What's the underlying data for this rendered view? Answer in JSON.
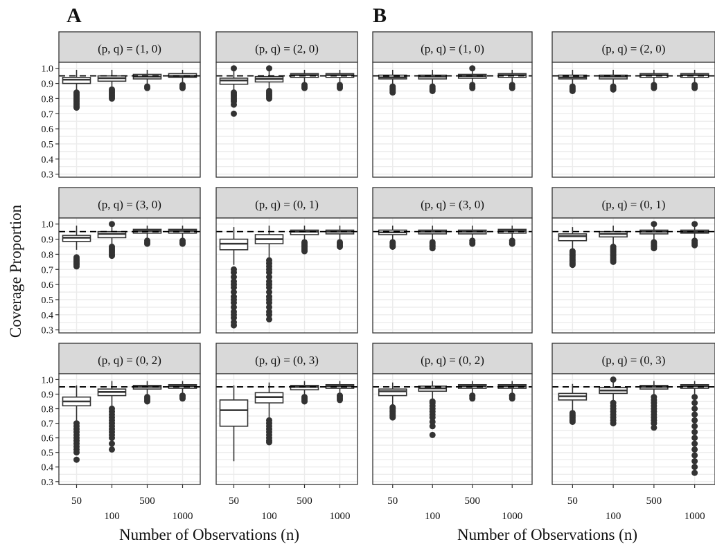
{
  "panel_labels": [
    "A",
    "B"
  ],
  "ylabel": "Coverage Proportion",
  "xlabel": "Number of Observations (n)",
  "chart_data": [
    {
      "type": "boxplot-facets",
      "panel": "A",
      "title": "",
      "xlabel": "Number of Observations (n)",
      "ylabel": "Coverage Proportion",
      "categories": [
        "50",
        "100",
        "500",
        "1000"
      ],
      "ylim": [
        0.28,
        1.04
      ],
      "yticks": [
        0.3,
        0.4,
        0.5,
        0.6,
        0.7,
        0.8,
        0.9,
        1.0
      ],
      "reference_line": 0.95,
      "grid": true,
      "facets": [
        {
          "label": "(p, q) = (1, 0)",
          "boxes": [
            {
              "q1": 0.9,
              "median": 0.925,
              "q3": 0.94,
              "whisker_low": 0.85,
              "whisker_high": 0.99,
              "outliers": [
                0.74,
                0.75,
                0.76,
                0.77,
                0.78,
                0.79,
                0.8,
                0.81,
                0.82,
                0.83,
                0.84
              ]
            },
            {
              "q1": 0.915,
              "median": 0.935,
              "q3": 0.95,
              "whisker_low": 0.86,
              "whisker_high": 0.99,
              "outliers": [
                0.8,
                0.81,
                0.82,
                0.83,
                0.84,
                0.85,
                0.86
              ]
            },
            {
              "q1": 0.93,
              "median": 0.945,
              "q3": 0.96,
              "whisker_low": 0.89,
              "whisker_high": 0.99,
              "outliers": [
                0.87,
                0.88
              ]
            },
            {
              "q1": 0.94,
              "median": 0.95,
              "q3": 0.965,
              "whisker_low": 0.9,
              "whisker_high": 0.99,
              "outliers": [
                0.87,
                0.88,
                0.89
              ]
            }
          ]
        },
        {
          "label": "(p, q) = (2, 0)",
          "boxes": [
            {
              "q1": 0.895,
              "median": 0.92,
              "q3": 0.935,
              "whisker_low": 0.85,
              "whisker_high": 0.99,
              "outliers": [
                1.0,
                0.7,
                0.76,
                0.78,
                0.79,
                0.8,
                0.81,
                0.82,
                0.83,
                0.84
              ]
            },
            {
              "q1": 0.91,
              "median": 0.93,
              "q3": 0.945,
              "whisker_low": 0.86,
              "whisker_high": 0.99,
              "outliers": [
                1.0,
                0.8,
                0.81,
                0.82,
                0.83,
                0.84,
                0.85
              ]
            },
            {
              "q1": 0.94,
              "median": 0.955,
              "q3": 0.965,
              "whisker_low": 0.9,
              "whisker_high": 0.99,
              "outliers": [
                0.87,
                0.88,
                0.89
              ]
            },
            {
              "q1": 0.94,
              "median": 0.955,
              "q3": 0.965,
              "whisker_low": 0.9,
              "whisker_high": 0.99,
              "outliers": [
                0.87,
                0.88,
                0.89
              ]
            }
          ]
        },
        {
          "label": "(p, q) = (3, 0)",
          "boxes": [
            {
              "q1": 0.885,
              "median": 0.91,
              "q3": 0.925,
              "whisker_low": 0.83,
              "whisker_high": 0.99,
              "outliers": [
                0.72,
                0.73,
                0.74,
                0.75,
                0.76,
                0.77,
                0.78
              ]
            },
            {
              "q1": 0.91,
              "median": 0.935,
              "q3": 0.95,
              "whisker_low": 0.86,
              "whisker_high": 0.99,
              "outliers": [
                1.0,
                0.79,
                0.8,
                0.81,
                0.82,
                0.83,
                0.84,
                0.85
              ]
            },
            {
              "q1": 0.94,
              "median": 0.955,
              "q3": 0.965,
              "whisker_low": 0.9,
              "whisker_high": 0.99,
              "outliers": [
                0.87,
                0.88,
                0.89
              ]
            },
            {
              "q1": 0.94,
              "median": 0.955,
              "q3": 0.965,
              "whisker_low": 0.9,
              "whisker_high": 0.99,
              "outliers": [
                0.87,
                0.88,
                0.89
              ]
            }
          ]
        },
        {
          "label": "(p, q) = (0, 1)",
          "boxes": [
            {
              "q1": 0.83,
              "median": 0.87,
              "q3": 0.9,
              "whisker_low": 0.73,
              "whisker_high": 0.98,
              "outliers": [
                0.33,
                0.35,
                0.38,
                0.4,
                0.42,
                0.45,
                0.48,
                0.5,
                0.52,
                0.55,
                0.58,
                0.6,
                0.62,
                0.65,
                0.68,
                0.7
              ]
            },
            {
              "q1": 0.87,
              "median": 0.9,
              "q3": 0.93,
              "whisker_low": 0.78,
              "whisker_high": 0.99,
              "outliers": [
                0.37,
                0.4,
                0.42,
                0.45,
                0.48,
                0.5,
                0.52,
                0.55,
                0.58,
                0.6,
                0.62,
                0.65,
                0.68,
                0.7,
                0.72,
                0.74,
                0.76
              ]
            },
            {
              "q1": 0.93,
              "median": 0.95,
              "q3": 0.96,
              "whisker_low": 0.89,
              "whisker_high": 0.99,
              "outliers": [
                0.82,
                0.83,
                0.84,
                0.85,
                0.86,
                0.87,
                0.88
              ]
            },
            {
              "q1": 0.935,
              "median": 0.95,
              "q3": 0.96,
              "whisker_low": 0.89,
              "whisker_high": 0.99,
              "outliers": [
                0.85,
                0.86,
                0.87,
                0.88
              ]
            }
          ]
        },
        {
          "label": "(p, q) = (0, 2)",
          "boxes": [
            {
              "q1": 0.82,
              "median": 0.85,
              "q3": 0.88,
              "whisker_low": 0.72,
              "whisker_high": 0.96,
              "outliers": [
                0.45,
                0.5,
                0.52,
                0.54,
                0.56,
                0.58,
                0.6,
                0.62,
                0.64,
                0.66,
                0.68,
                0.7
              ]
            },
            {
              "q1": 0.89,
              "median": 0.915,
              "q3": 0.935,
              "whisker_low": 0.82,
              "whisker_high": 0.99,
              "outliers": [
                0.52,
                0.56,
                0.6,
                0.62,
                0.64,
                0.66,
                0.68,
                0.7,
                0.72,
                0.74,
                0.76,
                0.78,
                0.8
              ]
            },
            {
              "q1": 0.935,
              "median": 0.95,
              "q3": 0.96,
              "whisker_low": 0.89,
              "whisker_high": 0.99,
              "outliers": [
                0.85,
                0.86,
                0.87,
                0.88
              ]
            },
            {
              "q1": 0.94,
              "median": 0.955,
              "q3": 0.965,
              "whisker_low": 0.9,
              "whisker_high": 0.99,
              "outliers": [
                0.87,
                0.88,
                0.89
              ]
            }
          ]
        },
        {
          "label": "(p, q) = (0, 3)",
          "boxes": [
            {
              "q1": 0.68,
              "median": 0.79,
              "q3": 0.86,
              "whisker_low": 0.44,
              "whisker_high": 0.96,
              "outliers": []
            },
            {
              "q1": 0.84,
              "median": 0.88,
              "q3": 0.91,
              "whisker_low": 0.74,
              "whisker_high": 0.98,
              "outliers": [
                0.57,
                0.58,
                0.6,
                0.62,
                0.64,
                0.66,
                0.68,
                0.7,
                0.72
              ]
            },
            {
              "q1": 0.93,
              "median": 0.95,
              "q3": 0.96,
              "whisker_low": 0.89,
              "whisker_high": 0.99,
              "outliers": [
                0.85,
                0.86,
                0.87,
                0.88
              ]
            },
            {
              "q1": 0.94,
              "median": 0.955,
              "q3": 0.965,
              "whisker_low": 0.9,
              "whisker_high": 0.99,
              "outliers": [
                0.86,
                0.87,
                0.88,
                0.89
              ]
            }
          ]
        }
      ]
    },
    {
      "type": "boxplot-facets",
      "panel": "B",
      "title": "",
      "xlabel": "Number of Observations (n)",
      "ylabel": "",
      "categories": [
        "50",
        "100",
        "500",
        "1000"
      ],
      "ylim": [
        0.28,
        1.04
      ],
      "yticks": [
        0.3,
        0.4,
        0.5,
        0.6,
        0.7,
        0.8,
        0.9,
        1.0
      ],
      "reference_line": 0.95,
      "grid": true,
      "facets": [
        {
          "label": "(p, q) = (1, 0)",
          "boxes": [
            {
              "q1": 0.93,
              "median": 0.94,
              "q3": 0.955,
              "whisker_low": 0.89,
              "whisker_high": 0.99,
              "outliers": [
                0.84,
                0.85,
                0.86,
                0.87,
                0.88
              ]
            },
            {
              "q1": 0.93,
              "median": 0.945,
              "q3": 0.955,
              "whisker_low": 0.89,
              "whisker_high": 0.99,
              "outliers": [
                0.85,
                0.86,
                0.87,
                0.88
              ]
            },
            {
              "q1": 0.935,
              "median": 0.95,
              "q3": 0.96,
              "whisker_low": 0.9,
              "whisker_high": 0.99,
              "outliers": [
                1.0,
                0.87,
                0.88,
                0.89
              ]
            },
            {
              "q1": 0.94,
              "median": 0.955,
              "q3": 0.965,
              "whisker_low": 0.9,
              "whisker_high": 0.99,
              "outliers": [
                0.87,
                0.88,
                0.89
              ]
            }
          ]
        },
        {
          "label": "(p, q) = (2, 0)",
          "boxes": [
            {
              "q1": 0.93,
              "median": 0.94,
              "q3": 0.955,
              "whisker_low": 0.89,
              "whisker_high": 0.99,
              "outliers": [
                0.85,
                0.86,
                0.87,
                0.88
              ]
            },
            {
              "q1": 0.93,
              "median": 0.945,
              "q3": 0.955,
              "whisker_low": 0.89,
              "whisker_high": 0.99,
              "outliers": [
                0.86,
                0.87,
                0.88
              ]
            },
            {
              "q1": 0.94,
              "median": 0.955,
              "q3": 0.965,
              "whisker_low": 0.9,
              "whisker_high": 0.99,
              "outliers": [
                0.87,
                0.88,
                0.89
              ]
            },
            {
              "q1": 0.94,
              "median": 0.955,
              "q3": 0.965,
              "whisker_low": 0.9,
              "whisker_high": 0.99,
              "outliers": [
                0.87,
                0.88,
                0.89
              ]
            }
          ]
        },
        {
          "label": "(p, q) = (3, 0)",
          "boxes": [
            {
              "q1": 0.93,
              "median": 0.945,
              "q3": 0.96,
              "whisker_low": 0.89,
              "whisker_high": 0.99,
              "outliers": [
                0.85,
                0.86,
                0.87,
                0.88
              ]
            },
            {
              "q1": 0.935,
              "median": 0.95,
              "q3": 0.96,
              "whisker_low": 0.89,
              "whisker_high": 0.99,
              "outliers": [
                0.84,
                0.85,
                0.86,
                0.87,
                0.88
              ]
            },
            {
              "q1": 0.935,
              "median": 0.95,
              "q3": 0.96,
              "whisker_low": 0.9,
              "whisker_high": 0.99,
              "outliers": [
                0.87,
                0.88,
                0.89
              ]
            },
            {
              "q1": 0.94,
              "median": 0.955,
              "q3": 0.965,
              "whisker_low": 0.9,
              "whisker_high": 0.99,
              "outliers": [
                0.87,
                0.88,
                0.89
              ]
            }
          ]
        },
        {
          "label": "(p, q) = (0, 1)",
          "boxes": [
            {
              "q1": 0.89,
              "median": 0.92,
              "q3": 0.935,
              "whisker_low": 0.84,
              "whisker_high": 0.98,
              "outliers": [
                0.73,
                0.74,
                0.75,
                0.76,
                0.77,
                0.78,
                0.79,
                0.8,
                0.81,
                0.82
              ]
            },
            {
              "q1": 0.915,
              "median": 0.935,
              "q3": 0.95,
              "whisker_low": 0.86,
              "whisker_high": 0.99,
              "outliers": [
                0.75,
                0.76,
                0.77,
                0.78,
                0.79,
                0.8,
                0.81,
                0.82,
                0.83,
                0.84,
                0.85
              ]
            },
            {
              "q1": 0.935,
              "median": 0.95,
              "q3": 0.96,
              "whisker_low": 0.89,
              "whisker_high": 0.99,
              "outliers": [
                1.0,
                0.84,
                0.85,
                0.86,
                0.87,
                0.88
              ]
            },
            {
              "q1": 0.94,
              "median": 0.95,
              "q3": 0.96,
              "whisker_low": 0.9,
              "whisker_high": 0.99,
              "outliers": [
                1.0,
                0.86,
                0.87,
                0.88,
                0.89
              ]
            }
          ]
        },
        {
          "label": "(p, q) = (0, 2)",
          "boxes": [
            {
              "q1": 0.89,
              "median": 0.92,
              "q3": 0.935,
              "whisker_low": 0.83,
              "whisker_high": 0.98,
              "outliers": [
                0.74,
                0.75,
                0.76,
                0.77,
                0.78,
                0.79,
                0.8,
                0.81
              ]
            },
            {
              "q1": 0.92,
              "median": 0.94,
              "q3": 0.955,
              "whisker_low": 0.87,
              "whisker_high": 0.99,
              "outliers": [
                0.62,
                0.68,
                0.71,
                0.74,
                0.76,
                0.78,
                0.8,
                0.82,
                0.84,
                0.85
              ]
            },
            {
              "q1": 0.94,
              "median": 0.955,
              "q3": 0.965,
              "whisker_low": 0.9,
              "whisker_high": 0.99,
              "outliers": [
                0.87,
                0.88,
                0.89
              ]
            },
            {
              "q1": 0.94,
              "median": 0.955,
              "q3": 0.965,
              "whisker_low": 0.9,
              "whisker_high": 0.99,
              "outliers": [
                0.87,
                0.88,
                0.89
              ]
            }
          ]
        },
        {
          "label": "(p, q) = (0, 3)",
          "boxes": [
            {
              "q1": 0.86,
              "median": 0.885,
              "q3": 0.905,
              "whisker_low": 0.79,
              "whisker_high": 0.97,
              "outliers": [
                0.71,
                0.72,
                0.73,
                0.74,
                0.75,
                0.76,
                0.77
              ]
            },
            {
              "q1": 0.905,
              "median": 0.925,
              "q3": 0.945,
              "whisker_low": 0.85,
              "whisker_high": 0.99,
              "outliers": [
                1.0,
                0.7,
                0.72,
                0.74,
                0.76,
                0.78,
                0.8,
                0.82,
                0.84
              ]
            },
            {
              "q1": 0.935,
              "median": 0.95,
              "q3": 0.96,
              "whisker_low": 0.89,
              "whisker_high": 0.99,
              "outliers": [
                0.67,
                0.7,
                0.72,
                0.74,
                0.76,
                0.78,
                0.8,
                0.82,
                0.84,
                0.86,
                0.88
              ]
            },
            {
              "q1": 0.94,
              "median": 0.955,
              "q3": 0.965,
              "whisker_low": 0.9,
              "whisker_high": 0.99,
              "outliers": [
                0.36,
                0.4,
                0.44,
                0.48,
                0.52,
                0.56,
                0.6,
                0.64,
                0.68,
                0.72,
                0.76,
                0.8,
                0.84,
                0.88
              ]
            }
          ]
        }
      ]
    }
  ]
}
